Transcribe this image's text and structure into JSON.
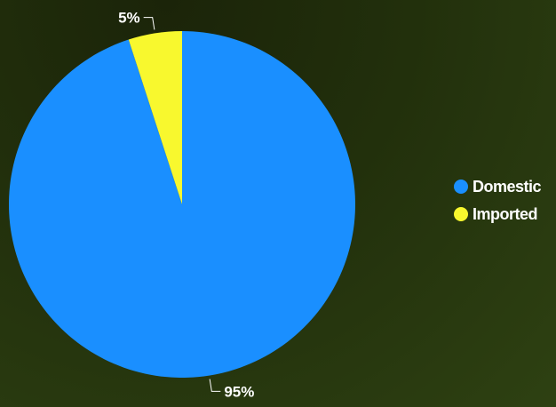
{
  "chart_data": {
    "type": "pie",
    "title": "",
    "slices": [
      {
        "label": "Domestic",
        "value": 95,
        "data_label": "95%",
        "color": "#1a8fff"
      },
      {
        "label": "Imported",
        "value": 5,
        "data_label": "5%",
        "color": "#f8f82e"
      }
    ],
    "start_angle_deg": 0,
    "direction": "clockwise",
    "legend_position": "right",
    "colors": {
      "background": "#22300c",
      "label_text": "#ffffff",
      "connector": "#ffffff"
    }
  }
}
